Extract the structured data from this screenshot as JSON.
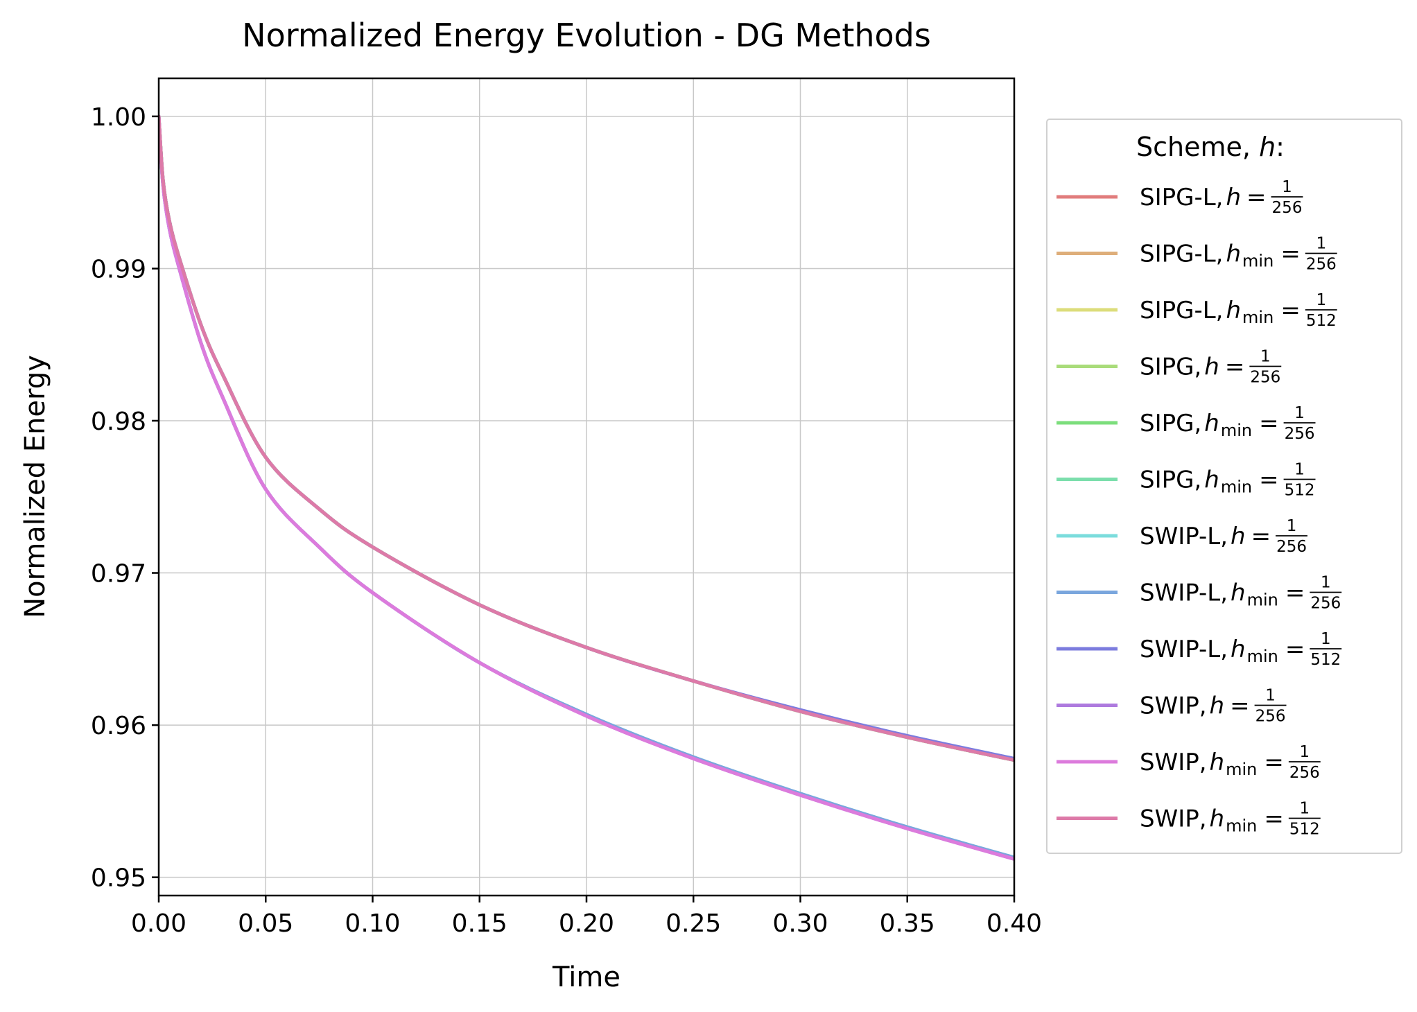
{
  "chart_data": {
    "type": "line",
    "title": "Normalized Energy Evolution - DG Methods",
    "xlabel": "Time",
    "ylabel": "Normalized Energy",
    "xlim": [
      0.0,
      0.4
    ],
    "ylim": [
      0.9488,
      1.0025
    ],
    "xticks": [
      "0.00",
      "0.05",
      "0.10",
      "0.15",
      "0.20",
      "0.25",
      "0.30",
      "0.35",
      "0.40"
    ],
    "yticks": [
      "0.95",
      "0.96",
      "0.97",
      "0.98",
      "0.99",
      "1.00"
    ],
    "grid": true,
    "legend": {
      "title_prefix": "Scheme, ",
      "title_var": "h",
      "title_suffix": ":",
      "placement": "outside-right"
    },
    "x": [
      0.0,
      0.002,
      0.005,
      0.01,
      0.02,
      0.03,
      0.05,
      0.075,
      0.1,
      0.15,
      0.2,
      0.25,
      0.3,
      0.35,
      0.4
    ],
    "series": [
      {
        "name": "SIPG-L, h = 1/256",
        "scheme": "SIPG-L",
        "var": "h",
        "sub": "",
        "den": "256",
        "color": "#e17c7c",
        "values": [
          1.0,
          0.9958,
          0.9931,
          0.9905,
          0.9862,
          0.983,
          0.9776,
          0.9742,
          0.9717,
          0.9679,
          0.9651,
          0.9629,
          0.9609,
          0.9592,
          0.9577
        ]
      },
      {
        "name": "SIPG-L, h_min = 1/256",
        "scheme": "SIPG-L",
        "var": "h",
        "sub": "min",
        "den": "256",
        "color": "#deae7a",
        "values": [
          1.0,
          0.9958,
          0.9931,
          0.9905,
          0.9862,
          0.983,
          0.9776,
          0.9742,
          0.9717,
          0.9679,
          0.9651,
          0.9629,
          0.9609,
          0.9592,
          0.9577
        ]
      },
      {
        "name": "SIPG-L, h_min = 1/512",
        "scheme": "SIPG-L",
        "var": "h",
        "sub": "min",
        "den": "512",
        "color": "#dcdd7b",
        "values": [
          1.0,
          0.9958,
          0.9931,
          0.9905,
          0.9862,
          0.983,
          0.9776,
          0.9742,
          0.9717,
          0.9679,
          0.9651,
          0.9629,
          0.9609,
          0.9592,
          0.9577
        ]
      },
      {
        "name": "SIPG, h = 1/256",
        "scheme": "SIPG",
        "var": "h",
        "sub": "",
        "den": "256",
        "color": "#a9dc7a",
        "values": [
          1.0,
          0.9958,
          0.9931,
          0.9905,
          0.9862,
          0.983,
          0.9776,
          0.9742,
          0.9717,
          0.9679,
          0.9651,
          0.9629,
          0.9609,
          0.9592,
          0.9577
        ]
      },
      {
        "name": "SIPG, h_min = 1/256",
        "scheme": "SIPG",
        "var": "h",
        "sub": "min",
        "den": "256",
        "color": "#7cde7c",
        "values": [
          1.0,
          0.9958,
          0.9931,
          0.9905,
          0.9862,
          0.983,
          0.9776,
          0.9742,
          0.9717,
          0.9679,
          0.9651,
          0.9629,
          0.9609,
          0.9592,
          0.9577
        ]
      },
      {
        "name": "SIPG, h_min = 1/512",
        "scheme": "SIPG",
        "var": "h",
        "sub": "min",
        "den": "512",
        "color": "#7cdeac",
        "values": [
          1.0,
          0.9958,
          0.9931,
          0.9905,
          0.9862,
          0.983,
          0.9776,
          0.9742,
          0.9717,
          0.9679,
          0.9651,
          0.9629,
          0.9609,
          0.9592,
          0.9577
        ]
      },
      {
        "name": "SWIP-L, h = 1/256",
        "scheme": "SWIP-L",
        "var": "h",
        "sub": "",
        "den": "256",
        "color": "#7bdcdc",
        "values": [
          1.0,
          0.9955,
          0.9926,
          0.9898,
          0.985,
          0.9815,
          0.9755,
          0.9717,
          0.9687,
          0.9641,
          0.9607,
          0.9579,
          0.9555,
          0.9533,
          0.9513
        ]
      },
      {
        "name": "SWIP-L, h_min = 1/256",
        "scheme": "SWIP-L",
        "var": "h",
        "sub": "min",
        "den": "256",
        "color": "#7aa6dd",
        "values": [
          1.0,
          0.9955,
          0.9926,
          0.9898,
          0.985,
          0.9815,
          0.9755,
          0.9717,
          0.9687,
          0.9641,
          0.9607,
          0.9579,
          0.9555,
          0.9533,
          0.9513
        ]
      },
      {
        "name": "SWIP-L, h_min = 1/512",
        "scheme": "SWIP-L",
        "var": "h",
        "sub": "min",
        "den": "512",
        "color": "#7c7cde",
        "values": [
          1.0,
          0.9958,
          0.9931,
          0.9905,
          0.9862,
          0.983,
          0.9776,
          0.9742,
          0.9717,
          0.9679,
          0.9651,
          0.9629,
          0.961,
          0.9593,
          0.9578
        ]
      },
      {
        "name": "SWIP, h = 1/256",
        "scheme": "SWIP",
        "var": "h",
        "sub": "",
        "den": "256",
        "color": "#ae7ade",
        "values": [
          1.0,
          0.9955,
          0.9926,
          0.9898,
          0.985,
          0.9815,
          0.9755,
          0.9717,
          0.9687,
          0.9641,
          0.9606,
          0.9578,
          0.9554,
          0.9532,
          0.9512
        ]
      },
      {
        "name": "SWIP, h_min = 1/256",
        "scheme": "SWIP",
        "var": "h",
        "sub": "min",
        "den": "256",
        "color": "#dc7bdc",
        "values": [
          1.0,
          0.9955,
          0.9926,
          0.9898,
          0.985,
          0.9815,
          0.9755,
          0.9717,
          0.9687,
          0.9641,
          0.9606,
          0.9578,
          0.9554,
          0.9532,
          0.9512
        ]
      },
      {
        "name": "SWIP, h_min = 1/512",
        "scheme": "SWIP",
        "var": "h",
        "sub": "min",
        "den": "512",
        "color": "#dd7aa8",
        "values": [
          1.0,
          0.9958,
          0.9931,
          0.9905,
          0.9862,
          0.983,
          0.9776,
          0.9742,
          0.9717,
          0.9679,
          0.9651,
          0.9629,
          0.9609,
          0.9592,
          0.9577
        ]
      }
    ]
  }
}
